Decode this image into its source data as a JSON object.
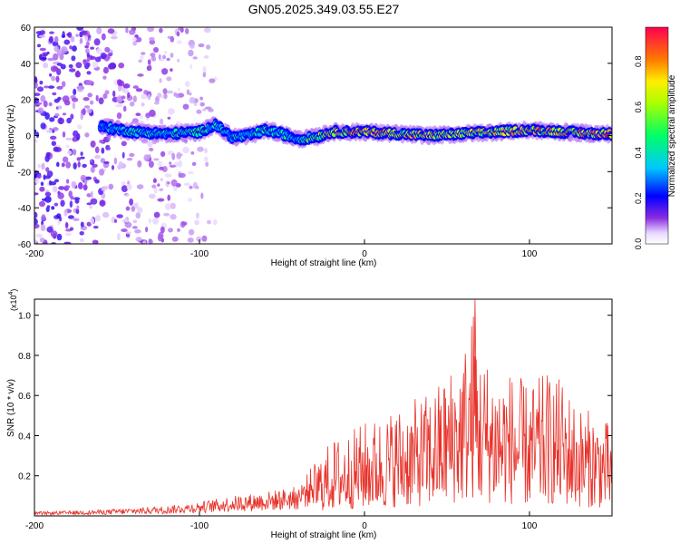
{
  "title": "GN05.2025.349.03.55.E27",
  "colors": {
    "signal": "#e8322a",
    "spec_low": "#8a2be2",
    "spec_mid": "#00d0ff",
    "spec_high": "#ff0040",
    "axis": "#000000",
    "background": "#ffffff"
  },
  "chart_data": [
    {
      "type": "heatmap",
      "title": "GN05.2025.349.03.55.E27",
      "xlabel": "Height of straight line (km)",
      "ylabel": "Frequency (Hz)",
      "xlim": [
        -200,
        150
      ],
      "ylim": [
        -60,
        60
      ],
      "x_ticks": [
        -200,
        -100,
        0,
        100
      ],
      "x_tick_labels": [
        "-200",
        "-100",
        "0",
        "100"
      ],
      "y_ticks": [
        -60,
        -40,
        -20,
        0,
        20,
        40,
        60
      ],
      "y_tick_labels": [
        "-60",
        "-40",
        "-20",
        "0",
        "20",
        "40",
        "60"
      ],
      "colorbar": {
        "label": "Normalized spectral amplitude",
        "range": [
          0,
          0.95
        ],
        "ticks": [
          0.0,
          0.2,
          0.4,
          0.6,
          0.8
        ],
        "tick_labels": [
          "0.0",
          "0.2",
          "0.4",
          "0.6",
          "0.8"
        ]
      },
      "ridge": {
        "x": [
          -160,
          -140,
          -120,
          -100,
          -90,
          -80,
          -70,
          -60,
          -50,
          -40,
          -30,
          -20,
          -10,
          0,
          20,
          40,
          60,
          80,
          100,
          120,
          140,
          150
        ],
        "freq": [
          5,
          2,
          1,
          2,
          6,
          -1,
          0,
          3,
          1,
          -2,
          -1,
          2,
          2,
          2,
          1,
          0,
          1,
          2,
          3,
          2,
          1,
          1
        ],
        "amplitude": [
          0.35,
          0.45,
          0.45,
          0.5,
          0.45,
          0.4,
          0.45,
          0.5,
          0.45,
          0.4,
          0.6,
          0.75,
          0.8,
          0.85,
          0.75,
          0.7,
          0.7,
          0.75,
          0.8,
          0.75,
          0.85,
          0.9
        ]
      },
      "noise_region": [
        -200,
        -90
      ]
    },
    {
      "type": "line",
      "title": "",
      "xlabel": "Height of straight line (km)",
      "ylabel": "SNR (10 * v/v)",
      "y_multiplier": "(x10",
      "y_multiplier_exp": "4",
      "y_multiplier_close": ")",
      "xlim": [
        -200,
        150
      ],
      "ylim": [
        0,
        1.08
      ],
      "x_ticks": [
        -200,
        -100,
        0,
        100
      ],
      "x_tick_labels": [
        "-200",
        "-100",
        "0",
        "100"
      ],
      "y_ticks": [
        0.2,
        0.4,
        0.6,
        0.8,
        1.0
      ],
      "y_tick_labels": [
        "0.2",
        "0.4",
        "0.6",
        "0.8",
        "1.0"
      ],
      "series": [
        {
          "name": "SNR",
          "envelope_x": [
            -200,
            -160,
            -120,
            -100,
            -80,
            -60,
            -40,
            -30,
            -20,
            -10,
            0,
            10,
            20,
            30,
            40,
            50,
            60,
            67,
            70,
            80,
            90,
            100,
            110,
            120,
            130,
            140,
            150
          ],
          "envelope_y": [
            0.02,
            0.03,
            0.05,
            0.07,
            0.1,
            0.12,
            0.15,
            0.27,
            0.38,
            0.42,
            0.47,
            0.5,
            0.55,
            0.58,
            0.62,
            0.72,
            0.85,
            1.08,
            0.82,
            0.75,
            0.72,
            0.65,
            0.72,
            0.68,
            0.55,
            0.52,
            0.45
          ]
        }
      ]
    }
  ]
}
